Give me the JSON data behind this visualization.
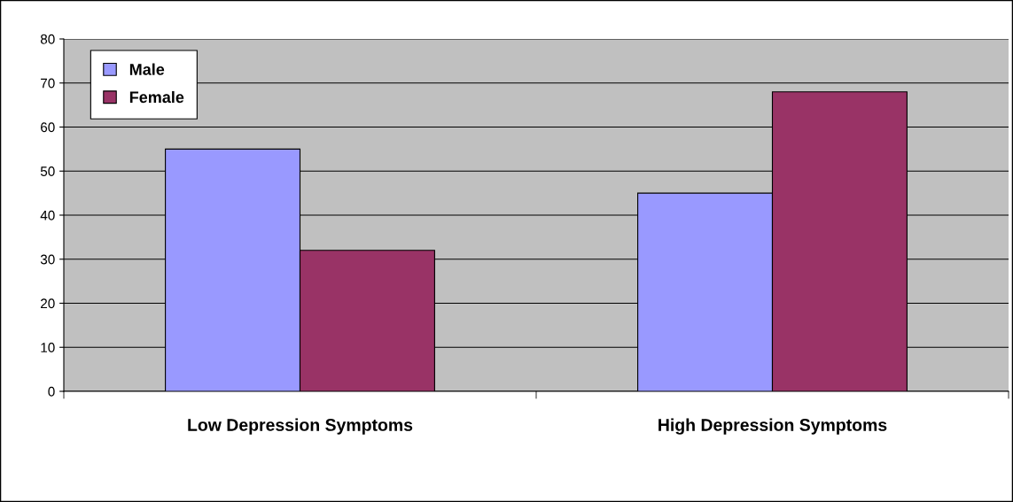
{
  "chart_data": {
    "type": "bar",
    "categories": [
      "Low Depression Symptoms",
      "High Depression Symptoms"
    ],
    "series": [
      {
        "name": "Male",
        "color": "#9999ff",
        "values": [
          55,
          45
        ]
      },
      {
        "name": "Female",
        "color": "#993366",
        "values": [
          32,
          68
        ]
      }
    ],
    "ylim": [
      0,
      80
    ],
    "yticks": [
      0,
      10,
      20,
      30,
      40,
      50,
      60,
      70,
      80
    ],
    "grid": "y",
    "legend": "top left"
  }
}
